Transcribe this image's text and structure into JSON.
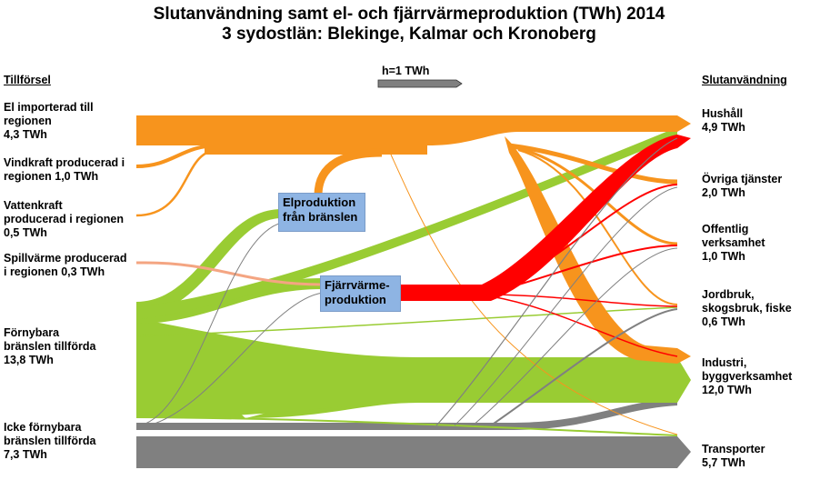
{
  "title": {
    "line1": "Slutanvändning samt el- och fjärrvärmeproduktion (TWh) 2014",
    "line2": "3 sydostlän: Blekinge, Kalmar och Kronoberg"
  },
  "headers": {
    "supply": "Tillförsel",
    "end_use": "Slutanvändning"
  },
  "scale": {
    "label": "h=1 TWh",
    "value_twh": 1
  },
  "supply": [
    {
      "line1": "El importerad till",
      "line2": "regionen",
      "line3": "4,3 TWh",
      "value": 4.3,
      "color": "#f7941d"
    },
    {
      "line1": "Vindkraft producerad i",
      "line2": "regionen 1,0 TWh",
      "value": 1.0,
      "color": "#f7941d"
    },
    {
      "line1": "Vattenkraft",
      "line2": "producerad i regionen",
      "line3": "0,5 TWh",
      "value": 0.5,
      "color": "#f7941d"
    },
    {
      "line1": "Spillvärme producerad",
      "line2": "i regionen 0,3 TWh",
      "value": 0.3,
      "color": "#f4a582"
    },
    {
      "line1": "Förnybara",
      "line2": "bränslen tillförda",
      "line3": "13,8 TWh",
      "value": 13.8,
      "color": "#99cc33"
    },
    {
      "line1": "Icke förnybara",
      "line2": "bränslen tillförda",
      "line3": "7,3 TWh",
      "value": 7.3,
      "color": "#808080"
    }
  ],
  "conversion": {
    "el": {
      "line1": "Elproduktion",
      "line2": "från bränslen"
    },
    "fv": {
      "line1": "Fjärrvärme-",
      "line2": "produktion"
    }
  },
  "end_use": [
    {
      "line1": "Hushåll",
      "line2": "4,9 TWh",
      "value": 4.9
    },
    {
      "line1": "Övriga tjänster",
      "line2": "2,0 TWh",
      "value": 2.0
    },
    {
      "line1": "Offentlig",
      "line2": "verksamhet",
      "line3": "1,0 TWh",
      "value": 1.0
    },
    {
      "line1": "Jordbruk,",
      "line2": "skogsbruk, fiske",
      "line3": "0,6 TWh",
      "value": 0.6
    },
    {
      "line1": "Industri,",
      "line2": "byggverksamhet",
      "line3": "12,0 TWh",
      "value": 12.0
    },
    {
      "line1": "Transporter",
      "line2": "5,7 TWh",
      "value": 5.7
    }
  ],
  "colors": {
    "electricity": "#f7941d",
    "district_heat": "#ff0000",
    "renewable": "#99cc33",
    "non_renewable": "#808080",
    "waste_heat": "#f4a582",
    "conversion_box": "#8eb4e3"
  }
}
